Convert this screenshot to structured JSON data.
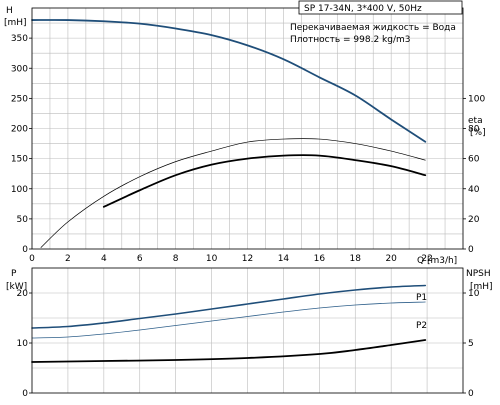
{
  "header": {
    "pump": "SP 17-34N, 3*400 V, 50Hz",
    "liquid": "Перекачиваемая жидкость = Вода",
    "density": "Плотность = 998.2 kg/m3"
  },
  "chart_data": [
    {
      "type": "line",
      "axes": {
        "x": {
          "label": "Q [m3/h]",
          "range": [
            0,
            24
          ],
          "ticks": [
            0,
            2,
            4,
            6,
            8,
            10,
            12,
            14,
            16,
            18,
            20,
            22
          ]
        },
        "y_left": {
          "label_top": "H",
          "label_bottom": "[mH]",
          "range": [
            0,
            400
          ],
          "ticks": [
            0,
            50,
            100,
            150,
            200,
            250,
            300,
            350
          ]
        },
        "y_right": {
          "label_top": "eta",
          "label_bottom": "[%]",
          "range": [
            0,
            100
          ],
          "ticks": [
            0,
            20,
            40,
            60,
            80,
            100
          ],
          "spans_left": [
            0,
            250
          ]
        }
      },
      "grid": true,
      "series": [
        {
          "id": "H",
          "axis": "left",
          "color": "#1f4e79",
          "width": 1.8,
          "x": [
            0,
            2,
            4,
            6,
            8,
            10,
            12,
            14,
            16,
            18,
            20,
            21.9
          ],
          "y": [
            380,
            380,
            378,
            374,
            366,
            355,
            338,
            315,
            285,
            255,
            215,
            178
          ]
        },
        {
          "id": "eta_thin",
          "axis": "right",
          "color": "#000000",
          "width": 0.7,
          "x": [
            0.5,
            2,
            4,
            6,
            8,
            10,
            12,
            14,
            16,
            18,
            20,
            21.9
          ],
          "y": [
            1,
            18,
            35,
            48,
            58,
            65,
            71,
            73,
            73,
            70,
            65,
            59
          ]
        },
        {
          "id": "eta_thick",
          "axis": "right",
          "color": "#000000",
          "width": 1.8,
          "x": [
            4,
            6,
            8,
            10,
            12,
            14,
            16,
            18,
            20,
            21.9
          ],
          "y": [
            28,
            39,
            49,
            56,
            60,
            62,
            62,
            59,
            55,
            49
          ]
        }
      ]
    },
    {
      "type": "line",
      "axes": {
        "x": {
          "label": "",
          "range": [
            0,
            24
          ],
          "ticks": [
            0,
            2,
            4,
            6,
            8,
            10,
            12,
            14,
            16,
            18,
            20,
            22
          ]
        },
        "y_left": {
          "label_top": "P",
          "label_bottom": "[kW]",
          "range": [
            0,
            25
          ],
          "ticks": [
            0,
            10,
            20
          ]
        },
        "y_right": {
          "label_top": "NPSH",
          "label_bottom": "[mH]",
          "range": [
            0,
            12.5
          ],
          "ticks": [
            0,
            5,
            10
          ]
        }
      },
      "grid": true,
      "series": [
        {
          "id": "P1",
          "name": "P1",
          "axis": "left",
          "color": "#1f4e79",
          "width": 1.6,
          "x": [
            0,
            2,
            4,
            6,
            8,
            10,
            12,
            14,
            16,
            18,
            20,
            21.9
          ],
          "y": [
            13.0,
            13.3,
            14.0,
            14.9,
            15.8,
            16.8,
            17.8,
            18.8,
            19.8,
            20.6,
            21.2,
            21.5
          ]
        },
        {
          "id": "P2",
          "name": "P2",
          "axis": "left",
          "color": "#2e5f8a",
          "width": 0.8,
          "x": [
            0,
            2,
            4,
            6,
            8,
            10,
            12,
            14,
            16,
            18,
            20,
            21.9
          ],
          "y": [
            11.0,
            11.2,
            11.8,
            12.6,
            13.5,
            14.4,
            15.3,
            16.2,
            17.0,
            17.6,
            18.0,
            18.2
          ]
        },
        {
          "id": "NPSH",
          "axis": "right",
          "color": "#000000",
          "width": 1.8,
          "x": [
            0,
            4,
            8,
            12,
            16,
            18,
            20,
            21.9
          ],
          "y": [
            3.1,
            3.2,
            3.3,
            3.5,
            3.9,
            4.3,
            4.8,
            5.3
          ]
        }
      ]
    }
  ]
}
